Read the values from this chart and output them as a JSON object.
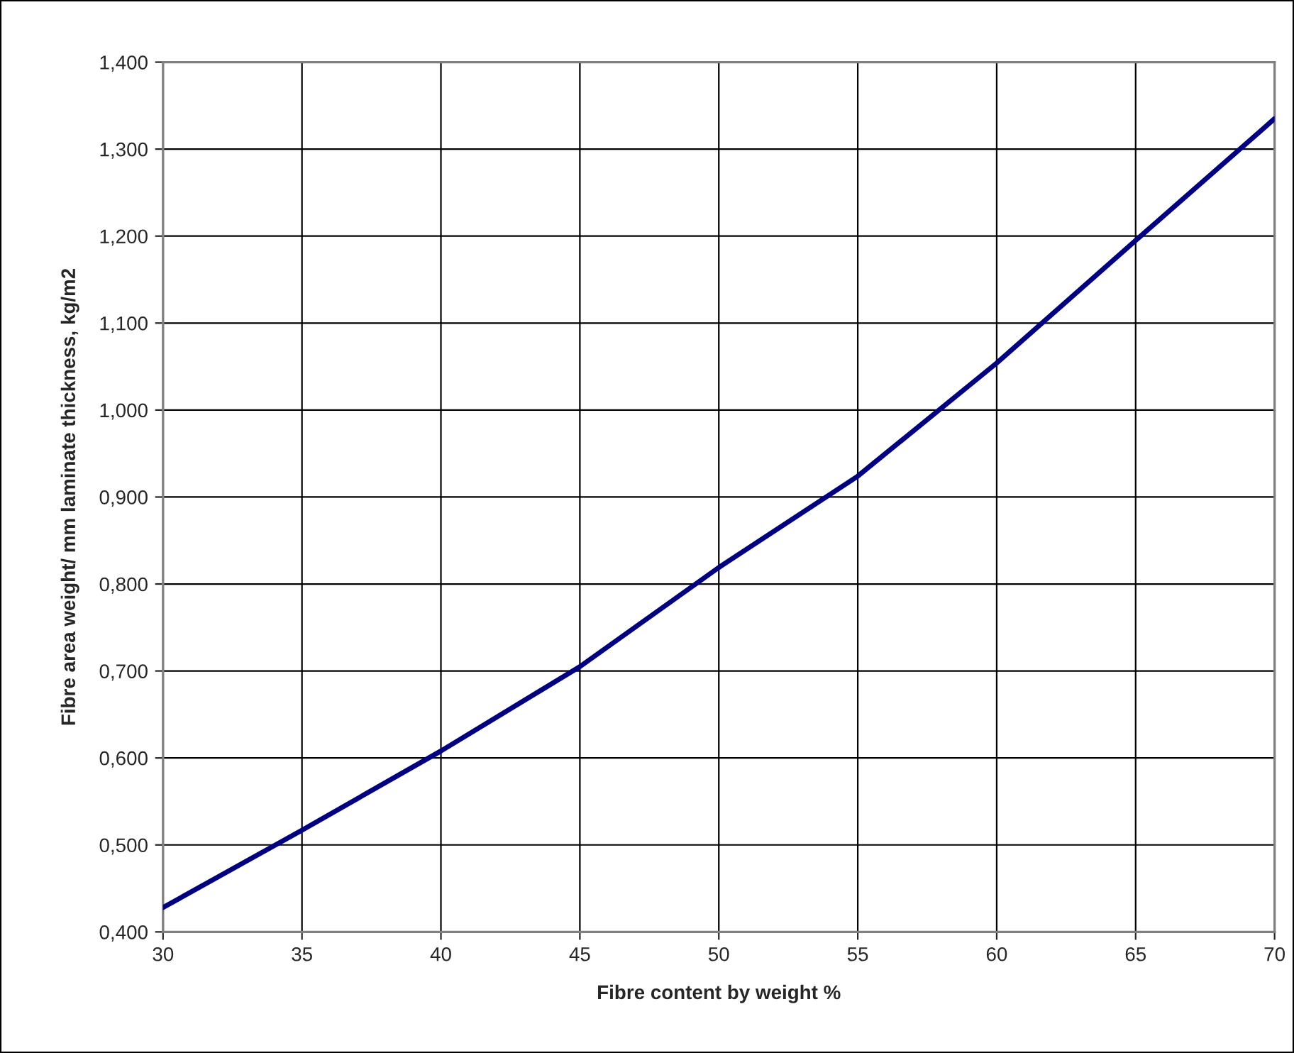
{
  "chart_data": {
    "type": "line",
    "xlabel": "Fibre content by weight %",
    "ylabel": "Fibre area weight/ mm laminate thickness, kg/m2",
    "x": [
      30,
      35,
      40,
      45,
      50,
      55,
      60,
      65,
      70
    ],
    "series": [
      {
        "color": "#000080",
        "values": [
          0.428,
          0.517,
          0.608,
          0.705,
          0.819,
          0.924,
          1.054,
          1.195,
          1.335
        ]
      }
    ],
    "xlim": [
      30,
      70
    ],
    "xticks": [
      30,
      35,
      40,
      45,
      50,
      55,
      60,
      65,
      70
    ],
    "ylim": [
      0.4,
      1.4
    ],
    "yticks": [
      {
        "value": 0.4,
        "label": "0,400"
      },
      {
        "value": 0.5,
        "label": "0,500"
      },
      {
        "value": 0.6,
        "label": "0,600"
      },
      {
        "value": 0.7,
        "label": "0,700"
      },
      {
        "value": 0.8,
        "label": "0,800"
      },
      {
        "value": 0.9,
        "label": "0,900"
      },
      {
        "value": 1.0,
        "label": "1,000"
      },
      {
        "value": 1.1,
        "label": "1,100"
      },
      {
        "value": 1.2,
        "label": "1,200"
      },
      {
        "value": 1.3,
        "label": "1,300"
      },
      {
        "value": 1.4,
        "label": "1,400"
      }
    ],
    "grid": true,
    "legend": false
  }
}
